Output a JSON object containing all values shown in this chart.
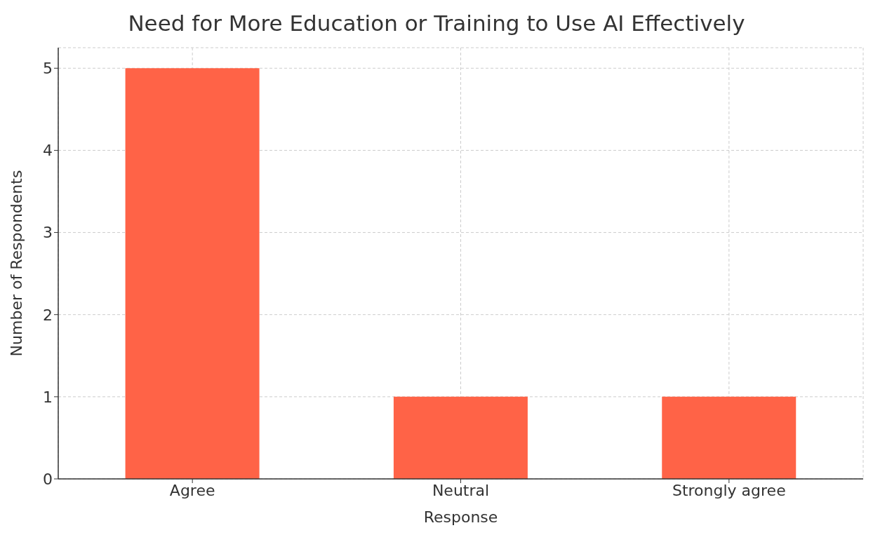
{
  "chart_data": {
    "type": "bar",
    "title": "Need for More Education or Training to Use AI Effectively",
    "xlabel": "Response",
    "ylabel": "Number of Respondents",
    "categories": [
      "Agree",
      "Neutral",
      "Strongly agree"
    ],
    "values": [
      5,
      1,
      1
    ],
    "color": "#ff6347",
    "ylim": [
      0,
      5.25
    ],
    "yticks": [
      0,
      1,
      2,
      3,
      4,
      5
    ],
    "grid": true
  }
}
